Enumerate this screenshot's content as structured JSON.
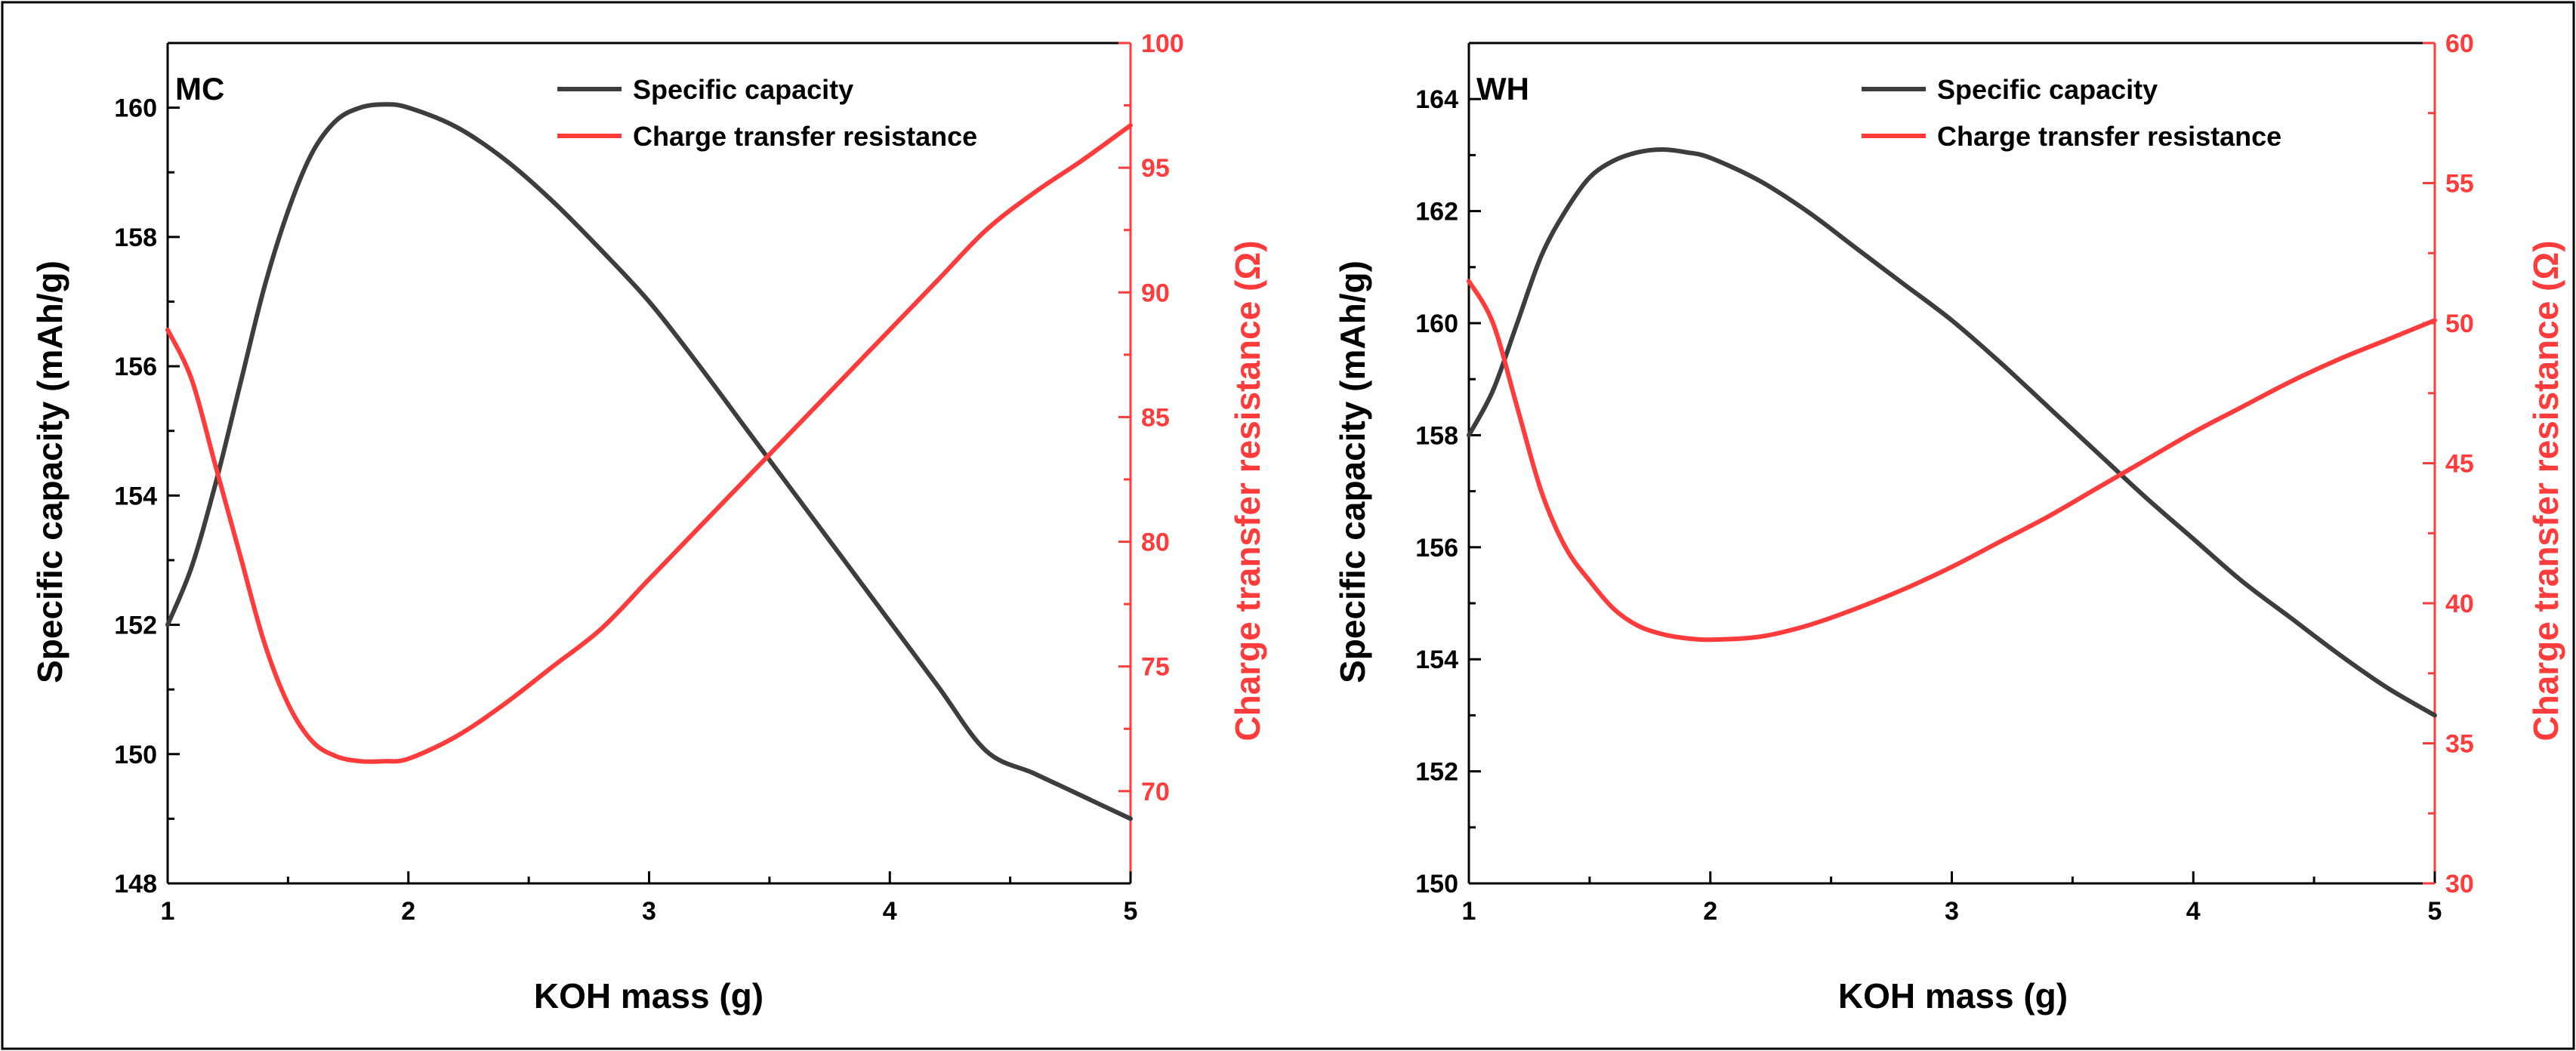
{
  "chart_data": [
    {
      "type": "line",
      "panel_label": "MC",
      "xlabel": "KOH mass (g)",
      "ylabel": "Specific capacity (mAh/g)",
      "y2label": "Charge transfer resistance (Ω)",
      "xlim": [
        1,
        5
      ],
      "ylim": [
        148,
        161
      ],
      "y2lim": [
        66.3,
        100
      ],
      "xticks": [
        "1",
        "2",
        "3",
        "4",
        "5"
      ],
      "yticks": [
        "148",
        "150",
        "152",
        "154",
        "156",
        "158",
        "160"
      ],
      "y2ticks": [
        "70",
        "75",
        "80",
        "85",
        "90",
        "95",
        "100"
      ],
      "legend_position": "top-right",
      "series": [
        {
          "name": "Specific capacity",
          "axis": "left",
          "color": "#3d3d3d",
          "x": [
            1.0,
            1.1,
            1.2,
            1.3,
            1.4,
            1.5,
            1.6,
            1.7,
            1.8,
            1.9,
            2.0,
            2.2,
            2.4,
            2.6,
            2.8,
            3.0,
            3.2,
            3.4,
            3.6,
            3.8,
            4.0,
            4.2,
            4.4,
            4.6,
            4.8,
            5.0
          ],
          "values": [
            152.0,
            152.9,
            154.2,
            155.7,
            157.2,
            158.4,
            159.3,
            159.8,
            160.0,
            160.05,
            160.0,
            159.7,
            159.2,
            158.55,
            157.8,
            157.0,
            156.05,
            155.05,
            154.05,
            153.05,
            152.05,
            151.05,
            150.05,
            149.7,
            149.35,
            149.0
          ]
        },
        {
          "name": "Charge transfer resistance",
          "axis": "right",
          "color": "#ff3b3b",
          "x": [
            1.0,
            1.1,
            1.2,
            1.3,
            1.4,
            1.5,
            1.6,
            1.7,
            1.8,
            1.9,
            2.0,
            2.2,
            2.4,
            2.6,
            2.8,
            3.0,
            3.2,
            3.4,
            3.6,
            3.8,
            4.0,
            4.2,
            4.4,
            4.6,
            4.8,
            5.0
          ],
          "values": [
            88.5,
            86.5,
            83.0,
            79.5,
            76.0,
            73.5,
            72.0,
            71.4,
            71.2,
            71.2,
            71.3,
            72.2,
            73.5,
            75.0,
            76.5,
            78.5,
            80.5,
            82.5,
            84.5,
            86.5,
            88.5,
            90.5,
            92.5,
            94.0,
            95.3,
            96.7
          ]
        }
      ]
    },
    {
      "type": "line",
      "panel_label": "WH",
      "xlabel": "KOH mass (g)",
      "ylabel": "Specific capacity (mAh/g)",
      "y2label": "Charge transfer resistance (Ω)",
      "xlim": [
        1,
        5
      ],
      "ylim": [
        150,
        165
      ],
      "y2lim": [
        30,
        60
      ],
      "xticks": [
        "1",
        "2",
        "3",
        "4",
        "5"
      ],
      "yticks": [
        "150",
        "152",
        "154",
        "156",
        "158",
        "160",
        "162",
        "164"
      ],
      "y2ticks": [
        "30",
        "35",
        "40",
        "45",
        "50",
        "55",
        "60"
      ],
      "legend_position": "top-right",
      "series": [
        {
          "name": "Specific capacity",
          "axis": "left",
          "color": "#3d3d3d",
          "x": [
            1.0,
            1.1,
            1.2,
            1.3,
            1.4,
            1.5,
            1.6,
            1.7,
            1.8,
            1.9,
            2.0,
            2.2,
            2.4,
            2.6,
            2.8,
            3.0,
            3.2,
            3.4,
            3.6,
            3.8,
            4.0,
            4.2,
            4.4,
            4.6,
            4.8,
            5.0
          ],
          "values": [
            158.0,
            158.8,
            160.0,
            161.2,
            162.0,
            162.6,
            162.9,
            163.05,
            163.1,
            163.05,
            162.95,
            162.55,
            162.0,
            161.35,
            160.7,
            160.05,
            159.3,
            158.5,
            157.7,
            156.9,
            156.15,
            155.4,
            154.75,
            154.1,
            153.5,
            153.0
          ]
        },
        {
          "name": "Charge transfer resistance",
          "axis": "right",
          "color": "#ff3b3b",
          "x": [
            1.0,
            1.1,
            1.2,
            1.3,
            1.4,
            1.5,
            1.6,
            1.7,
            1.8,
            1.9,
            2.0,
            2.2,
            2.4,
            2.6,
            2.8,
            3.0,
            3.2,
            3.4,
            3.6,
            3.8,
            4.0,
            4.2,
            4.4,
            4.6,
            4.8,
            5.0
          ],
          "values": [
            51.5,
            50.0,
            47.0,
            44.0,
            42.0,
            40.8,
            39.8,
            39.2,
            38.9,
            38.75,
            38.7,
            38.8,
            39.2,
            39.8,
            40.5,
            41.3,
            42.2,
            43.1,
            44.1,
            45.1,
            46.1,
            47.0,
            47.9,
            48.7,
            49.4,
            50.1
          ]
        }
      ]
    }
  ]
}
